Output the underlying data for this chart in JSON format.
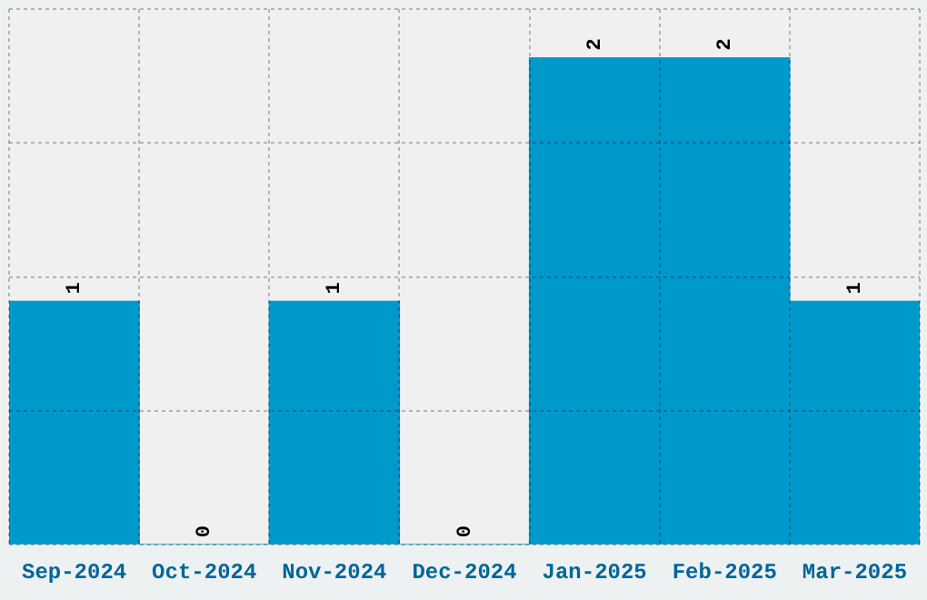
{
  "chart_data": {
    "type": "bar",
    "categories": [
      "Sep-2024",
      "Oct-2024",
      "Nov-2024",
      "Dec-2024",
      "Jan-2025",
      "Feb-2025",
      "Mar-2025"
    ],
    "values": [
      1,
      0,
      1,
      0,
      2,
      2,
      1
    ],
    "color": "#0099cc",
    "ylim": [
      0,
      2.2
    ],
    "yticks": [
      {
        "value": 0,
        "label": null
      },
      {
        "value": 0.55,
        "label": null
      },
      {
        "value": 1.1,
        "label": null
      },
      {
        "value": 1.65,
        "label": null
      },
      {
        "value": 2.2,
        "label": null
      }
    ],
    "grid": true,
    "tick_labels": "x",
    "data_labels": true
  }
}
